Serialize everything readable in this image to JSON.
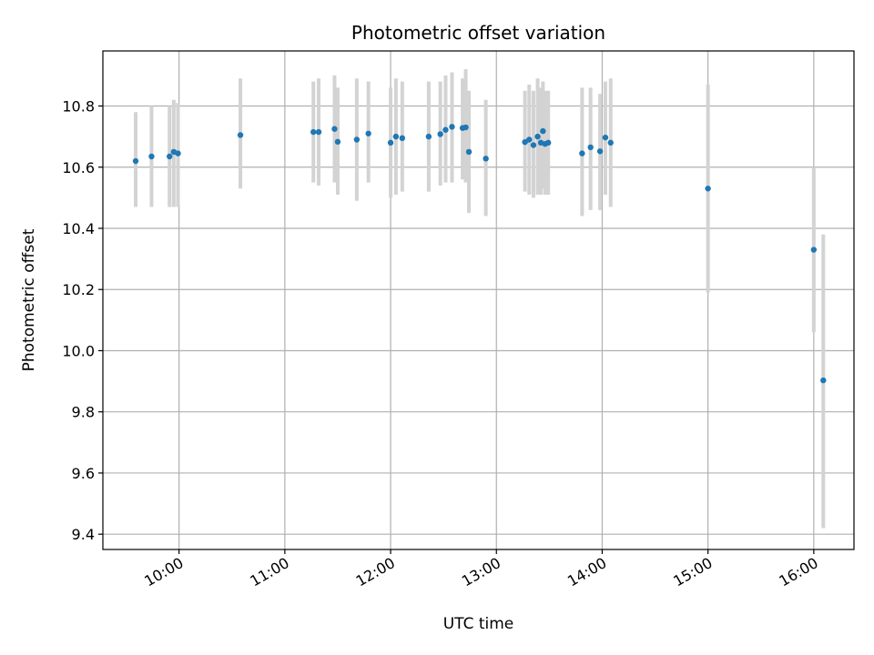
{
  "chart_data": {
    "type": "scatter",
    "title": "Photometric offset variation",
    "xlabel": "UTC time",
    "ylabel": "Photometric offset",
    "x_unit": "hours (UTC)",
    "xlim": [
      9.28,
      16.38
    ],
    "ylim": [
      9.35,
      10.98
    ],
    "grid": true,
    "colors": {
      "point": "#1f77b4",
      "errorbar": "#d3d3d3",
      "grid": "#b0b0b0",
      "axis": "#000000"
    },
    "xticks": [
      {
        "value": 10,
        "label": "10:00"
      },
      {
        "value": 11,
        "label": "11:00"
      },
      {
        "value": 12,
        "label": "12:00"
      },
      {
        "value": 13,
        "label": "13:00"
      },
      {
        "value": 14,
        "label": "14:00"
      },
      {
        "value": 15,
        "label": "15:00"
      },
      {
        "value": 16,
        "label": "16:00"
      }
    ],
    "yticks": [
      {
        "value": 9.4,
        "label": "9.4"
      },
      {
        "value": 9.6,
        "label": "9.6"
      },
      {
        "value": 9.8,
        "label": "9.8"
      },
      {
        "value": 10.0,
        "label": "10.0"
      },
      {
        "value": 10.2,
        "label": "10.2"
      },
      {
        "value": 10.4,
        "label": "10.4"
      },
      {
        "value": 10.6,
        "label": "10.6"
      },
      {
        "value": 10.8,
        "label": "10.8"
      }
    ],
    "points": [
      {
        "t": 9.59,
        "y": 10.62,
        "lo": 10.47,
        "hi": 10.78
      },
      {
        "t": 9.74,
        "y": 10.635,
        "lo": 10.47,
        "hi": 10.8
      },
      {
        "t": 9.91,
        "y": 10.635,
        "lo": 10.47,
        "hi": 10.8
      },
      {
        "t": 9.95,
        "y": 10.65,
        "lo": 10.47,
        "hi": 10.82
      },
      {
        "t": 9.99,
        "y": 10.645,
        "lo": 10.47,
        "hi": 10.81
      },
      {
        "t": 10.58,
        "y": 10.705,
        "lo": 10.53,
        "hi": 10.89
      },
      {
        "t": 11.27,
        "y": 10.715,
        "lo": 10.55,
        "hi": 10.88
      },
      {
        "t": 11.32,
        "y": 10.715,
        "lo": 10.54,
        "hi": 10.89
      },
      {
        "t": 11.47,
        "y": 10.725,
        "lo": 10.55,
        "hi": 10.9
      },
      {
        "t": 11.5,
        "y": 10.683,
        "lo": 10.51,
        "hi": 10.86
      },
      {
        "t": 11.68,
        "y": 10.69,
        "lo": 10.49,
        "hi": 10.89
      },
      {
        "t": 11.79,
        "y": 10.71,
        "lo": 10.55,
        "hi": 10.88
      },
      {
        "t": 12.0,
        "y": 10.68,
        "lo": 10.5,
        "hi": 10.86
      },
      {
        "t": 12.05,
        "y": 10.7,
        "lo": 10.51,
        "hi": 10.89
      },
      {
        "t": 12.11,
        "y": 10.695,
        "lo": 10.52,
        "hi": 10.88
      },
      {
        "t": 12.36,
        "y": 10.7,
        "lo": 10.52,
        "hi": 10.88
      },
      {
        "t": 12.47,
        "y": 10.708,
        "lo": 10.54,
        "hi": 10.88
      },
      {
        "t": 12.52,
        "y": 10.722,
        "lo": 10.55,
        "hi": 10.9
      },
      {
        "t": 12.58,
        "y": 10.732,
        "lo": 10.55,
        "hi": 10.91
      },
      {
        "t": 12.68,
        "y": 10.728,
        "lo": 10.56,
        "hi": 10.89
      },
      {
        "t": 12.71,
        "y": 10.73,
        "lo": 10.55,
        "hi": 10.92
      },
      {
        "t": 12.74,
        "y": 10.65,
        "lo": 10.45,
        "hi": 10.85
      },
      {
        "t": 12.9,
        "y": 10.628,
        "lo": 10.44,
        "hi": 10.82
      },
      {
        "t": 13.27,
        "y": 10.682,
        "lo": 10.52,
        "hi": 10.85
      },
      {
        "t": 13.31,
        "y": 10.69,
        "lo": 10.51,
        "hi": 10.87
      },
      {
        "t": 13.35,
        "y": 10.672,
        "lo": 10.5,
        "hi": 10.85
      },
      {
        "t": 13.39,
        "y": 10.7,
        "lo": 10.51,
        "hi": 10.89
      },
      {
        "t": 13.42,
        "y": 10.68,
        "lo": 10.51,
        "hi": 10.86
      },
      {
        "t": 13.44,
        "y": 10.718,
        "lo": 10.53,
        "hi": 10.88
      },
      {
        "t": 13.46,
        "y": 10.676,
        "lo": 10.51,
        "hi": 10.85
      },
      {
        "t": 13.49,
        "y": 10.68,
        "lo": 10.51,
        "hi": 10.85
      },
      {
        "t": 13.81,
        "y": 10.645,
        "lo": 10.44,
        "hi": 10.86
      },
      {
        "t": 13.89,
        "y": 10.665,
        "lo": 10.46,
        "hi": 10.86
      },
      {
        "t": 13.98,
        "y": 10.652,
        "lo": 10.46,
        "hi": 10.84
      },
      {
        "t": 14.03,
        "y": 10.697,
        "lo": 10.51,
        "hi": 10.88
      },
      {
        "t": 14.08,
        "y": 10.68,
        "lo": 10.47,
        "hi": 10.89
      },
      {
        "t": 15.0,
        "y": 10.53,
        "lo": 10.19,
        "hi": 10.87
      },
      {
        "t": 16.0,
        "y": 10.33,
        "lo": 10.06,
        "hi": 10.6
      },
      {
        "t": 16.09,
        "y": 9.903,
        "lo": 9.42,
        "hi": 10.38
      }
    ]
  }
}
